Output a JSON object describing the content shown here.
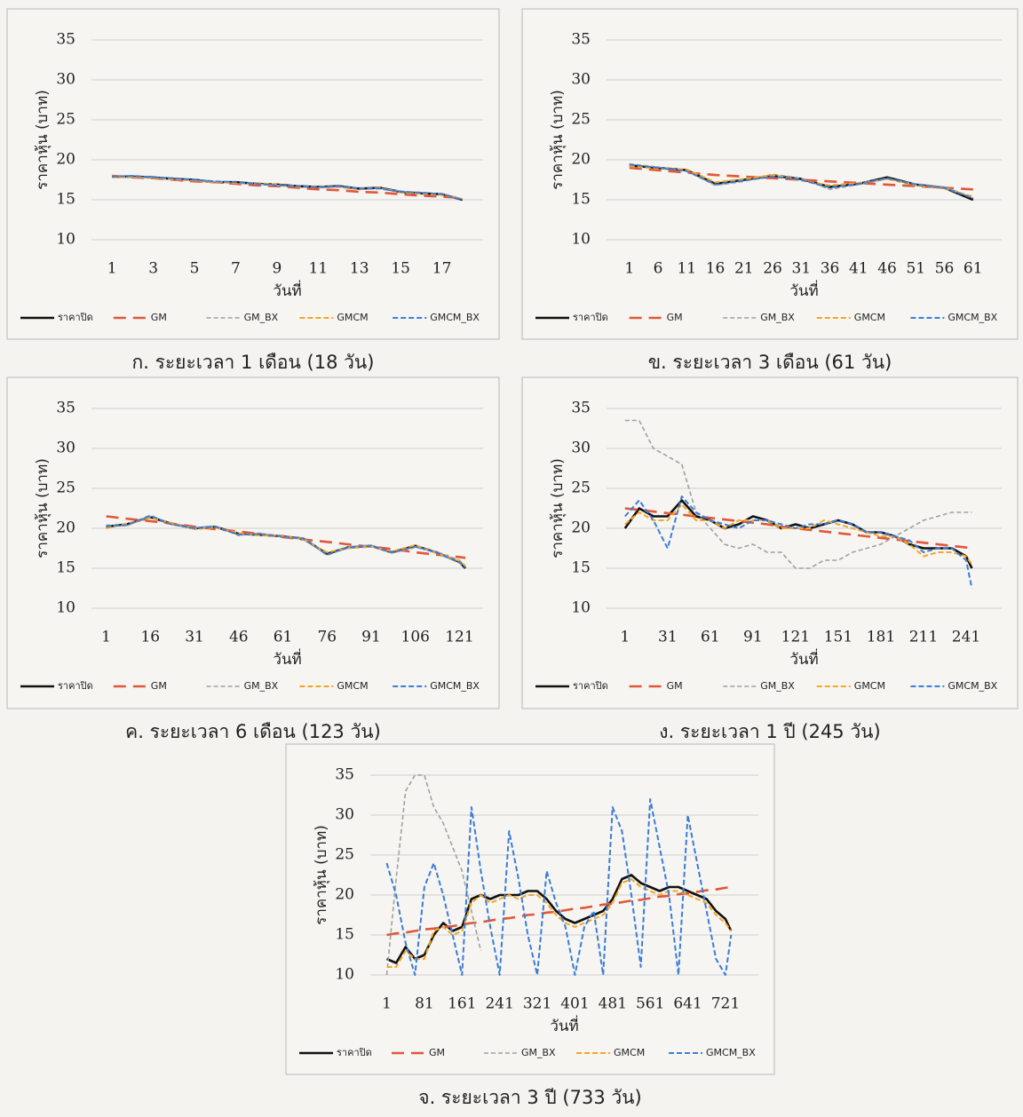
{
  "chart_data": [
    {
      "type": "line",
      "caption": "ก. ระยะเวลา 1 เดือน (18 วัน)",
      "ylabel": "ราคาหุ้น (บาท)",
      "xlabel": "วันที่",
      "x": [
        1,
        2,
        3,
        4,
        5,
        6,
        7,
        8,
        9,
        10,
        11,
        12,
        13,
        14,
        15,
        16,
        17,
        18
      ],
      "xlim": [
        0,
        19
      ],
      "xticks": [
        1,
        3,
        5,
        7,
        9,
        11,
        13,
        15,
        17
      ],
      "ylim": [
        10,
        35
      ],
      "yticks": [
        10,
        15,
        20,
        25,
        30,
        35
      ],
      "grid": true,
      "legend": "bottom",
      "series": [
        {
          "name": "ราคาปิด",
          "color": "#111111",
          "values": [
            17.9,
            17.9,
            17.8,
            17.6,
            17.5,
            17.2,
            17.2,
            17.0,
            16.9,
            16.7,
            16.6,
            16.7,
            16.4,
            16.5,
            16.0,
            15.8,
            15.7,
            15.0
          ]
        },
        {
          "name": "GM",
          "color": "#e0573a",
          "values": [
            18.0,
            17.8,
            17.7,
            17.5,
            17.3,
            17.2,
            17.0,
            16.8,
            16.7,
            16.5,
            16.3,
            16.2,
            16.0,
            15.9,
            15.7,
            15.5,
            15.4,
            15.2
          ]
        },
        {
          "name": "GM_BX",
          "color": "#a0a0a0",
          "values": [
            18.0,
            17.8,
            17.8,
            17.5,
            17.4,
            17.3,
            17.1,
            17.0,
            16.8,
            16.8,
            16.5,
            16.6,
            16.5,
            16.4,
            16.1,
            15.7,
            15.8,
            15.1
          ]
        },
        {
          "name": "GMCM",
          "color": "#f5a623",
          "values": [
            17.8,
            17.9,
            17.7,
            17.6,
            17.4,
            17.2,
            17.1,
            17.1,
            16.9,
            16.6,
            16.7,
            16.6,
            16.3,
            16.5,
            15.9,
            15.8,
            15.6,
            15.1
          ]
        },
        {
          "name": "GMCM_BX",
          "color": "#3b7dd8",
          "values": [
            17.9,
            18.0,
            17.8,
            17.7,
            17.5,
            17.3,
            17.2,
            17.0,
            16.8,
            16.7,
            16.6,
            16.7,
            16.4,
            16.4,
            16.0,
            15.9,
            15.7,
            15.0
          ]
        }
      ]
    },
    {
      "type": "line",
      "caption": "ข. ระยะเวลา 3 เดือน (61 วัน)",
      "ylabel": "ราคาหุ้น (บาท)",
      "xlabel": "วันที่",
      "x": [
        1,
        6,
        11,
        16,
        21,
        26,
        31,
        36,
        41,
        46,
        51,
        56,
        61
      ],
      "xlim": [
        -3,
        66
      ],
      "xticks": [
        1,
        6,
        11,
        16,
        21,
        26,
        31,
        36,
        41,
        46,
        51,
        56,
        61
      ],
      "ylim": [
        10,
        35
      ],
      "yticks": [
        10,
        15,
        20,
        25,
        30,
        35
      ],
      "grid": true,
      "legend": "bottom",
      "series": [
        {
          "name": "ราคาปิด",
          "color": "#111111",
          "values": [
            19.3,
            19.0,
            18.7,
            17.0,
            17.5,
            18.0,
            17.6,
            16.6,
            17.0,
            17.8,
            16.9,
            16.5,
            15.0
          ]
        },
        {
          "name": "GM",
          "color": "#e0573a",
          "values": [
            19.0,
            18.7,
            18.4,
            18.1,
            17.9,
            17.7,
            17.5,
            17.3,
            17.1,
            16.9,
            16.7,
            16.5,
            16.3
          ]
        },
        {
          "name": "GM_BX",
          "color": "#a0a0a0",
          "values": [
            19.5,
            19.1,
            18.6,
            16.8,
            17.3,
            18.2,
            17.7,
            16.3,
            16.9,
            17.6,
            17.0,
            16.6,
            15.3
          ]
        },
        {
          "name": "GMCM",
          "color": "#f5a623",
          "values": [
            19.2,
            18.9,
            18.8,
            17.2,
            17.6,
            18.1,
            17.4,
            16.8,
            17.1,
            17.6,
            16.8,
            16.4,
            15.4
          ]
        },
        {
          "name": "GMCM_BX",
          "color": "#3b7dd8",
          "values": [
            19.4,
            19.0,
            18.6,
            16.9,
            17.4,
            17.9,
            17.5,
            16.5,
            17.0,
            17.7,
            16.9,
            16.5,
            15.2
          ]
        }
      ]
    },
    {
      "type": "line",
      "caption": "ค. ระยะเวลา 6 เดือน (123 วัน)",
      "ylabel": "ราคาหุ้น (บาท)",
      "xlabel": "วันที่",
      "x": [
        1,
        8,
        16,
        23,
        31,
        38,
        46,
        53,
        61,
        68,
        76,
        83,
        91,
        98,
        106,
        113,
        121,
        123
      ],
      "xlim": [
        -4,
        129
      ],
      "xticks": [
        1,
        16,
        31,
        46,
        61,
        76,
        91,
        106,
        121
      ],
      "ylim": [
        10,
        35
      ],
      "yticks": [
        10,
        15,
        20,
        25,
        30,
        35
      ],
      "grid": true,
      "legend": "bottom",
      "series": [
        {
          "name": "ราคาปิด",
          "color": "#111111",
          "values": [
            20.2,
            20.5,
            21.4,
            20.6,
            20.0,
            20.2,
            19.3,
            19.2,
            19.0,
            18.7,
            16.8,
            17.6,
            17.8,
            17.0,
            17.8,
            17.0,
            15.8,
            15.0
          ]
        },
        {
          "name": "GM",
          "color": "#e0573a",
          "values": [
            21.5,
            21.2,
            20.9,
            20.6,
            20.2,
            19.9,
            19.6,
            19.3,
            18.9,
            18.6,
            18.3,
            18.0,
            17.7,
            17.4,
            17.0,
            16.7,
            16.4,
            16.3
          ]
        },
        {
          "name": "GM_BX",
          "color": "#a0a0a0",
          "values": [
            20.4,
            20.3,
            21.5,
            20.5,
            20.1,
            20.3,
            19.1,
            19.4,
            18.9,
            18.8,
            16.6,
            17.7,
            17.9,
            16.9,
            17.6,
            17.1,
            16.0,
            15.2
          ]
        },
        {
          "name": "GMCM",
          "color": "#f5a623",
          "values": [
            20.0,
            20.6,
            21.3,
            20.7,
            19.9,
            20.1,
            19.4,
            19.1,
            19.1,
            18.6,
            17.0,
            17.5,
            17.7,
            17.1,
            17.9,
            16.9,
            15.9,
            15.3
          ]
        },
        {
          "name": "GMCM_BX",
          "color": "#3b7dd8",
          "values": [
            20.3,
            20.4,
            21.6,
            20.5,
            20.0,
            20.2,
            19.2,
            19.3,
            19.0,
            18.7,
            16.7,
            17.6,
            17.8,
            17.0,
            17.7,
            17.0,
            15.7,
            15.1
          ]
        }
      ]
    },
    {
      "type": "line",
      "caption": "ง. ระยะเวลา 1 ปี (245 วัน)",
      "ylabel": "ราคาหุ้น (บาท)",
      "xlabel": "วันที่",
      "x": [
        1,
        11,
        21,
        31,
        41,
        51,
        61,
        71,
        81,
        91,
        101,
        111,
        121,
        131,
        141,
        151,
        161,
        171,
        181,
        191,
        201,
        211,
        221,
        231,
        241,
        245
      ],
      "xlim": [
        -12,
        266
      ],
      "xticks": [
        1,
        31,
        61,
        91,
        121,
        151,
        181,
        211,
        241
      ],
      "ylim": [
        10,
        35
      ],
      "yticks": [
        10,
        15,
        20,
        25,
        30,
        35
      ],
      "grid": true,
      "legend": "bottom",
      "series": [
        {
          "name": "ราคาปิด",
          "color": "#111111",
          "values": [
            20,
            22.5,
            21.5,
            21.5,
            23.5,
            21.5,
            21,
            20,
            20.5,
            21.5,
            21,
            20,
            20.5,
            20,
            20.5,
            21,
            20.5,
            19.5,
            19.5,
            19,
            18,
            17.5,
            17.5,
            17.5,
            16.5,
            15
          ]
        },
        {
          "name": "GM",
          "color": "#e0573a",
          "values": [
            22.5,
            22.3,
            22.1,
            21.9,
            21.7,
            21.5,
            21.3,
            21.1,
            20.9,
            20.7,
            20.5,
            20.2,
            20.0,
            19.8,
            19.6,
            19.4,
            19.2,
            19.0,
            18.8,
            18.6,
            18.4,
            18.2,
            18.0,
            17.8,
            17.6,
            17.5
          ]
        },
        {
          "name": "GM_BX",
          "color": "#a0a0a0",
          "values": [
            33.5,
            33.5,
            30,
            29,
            28,
            22,
            20,
            18,
            17.5,
            18,
            17,
            17,
            15,
            15,
            16,
            16,
            17,
            17.5,
            18,
            19,
            20,
            21,
            21.5,
            22,
            22,
            22
          ]
        },
        {
          "name": "GMCM",
          "color": "#f5a623",
          "values": [
            20.5,
            22,
            21,
            21,
            23,
            21,
            21,
            20,
            21,
            21,
            21,
            20,
            20,
            20,
            21,
            20.5,
            20,
            19.5,
            19,
            19,
            18,
            16.5,
            17,
            17,
            16.5,
            15.5
          ]
        },
        {
          "name": "GMCM_BX",
          "color": "#3b7dd8",
          "values": [
            21.5,
            23.5,
            21,
            17.5,
            24,
            22,
            21,
            20.5,
            20,
            21,
            21,
            20.5,
            20,
            20.5,
            20.5,
            21,
            20.5,
            19.5,
            19.5,
            19,
            18.5,
            17,
            17.5,
            17.5,
            16,
            12.5
          ]
        }
      ]
    },
    {
      "type": "line",
      "caption": "จ. ระยะเวลา 3 ปี (733 วัน)",
      "ylabel": "ราคาหุ้น (บาท)",
      "xlabel": "วันที่",
      "x": [
        1,
        21,
        41,
        61,
        81,
        101,
        121,
        141,
        161,
        181,
        201,
        221,
        241,
        261,
        281,
        301,
        321,
        341,
        361,
        381,
        401,
        421,
        441,
        461,
        481,
        501,
        521,
        541,
        561,
        581,
        601,
        621,
        641,
        661,
        681,
        701,
        721,
        733
      ],
      "xlim": [
        -34,
        791
      ],
      "xticks": [
        1,
        81,
        161,
        241,
        321,
        401,
        481,
        561,
        641,
        721
      ],
      "ylim": [
        10,
        35
      ],
      "yticks": [
        10,
        15,
        20,
        25,
        30,
        35
      ],
      "grid": true,
      "legend": "bottom",
      "series": [
        {
          "name": "ราคาปิด",
          "color": "#111111",
          "values": [
            12,
            11.5,
            13.5,
            12,
            12.5,
            15,
            16.5,
            15.5,
            16,
            19.5,
            20,
            19.5,
            20,
            20,
            20,
            20.5,
            20.5,
            19.5,
            18,
            17,
            16.5,
            17,
            17.5,
            18,
            19.5,
            22,
            22.5,
            21.5,
            21,
            20.5,
            21,
            21,
            20.5,
            20,
            19.5,
            18,
            17,
            15.5
          ]
        },
        {
          "name": "GM",
          "color": "#e0573a",
          "values": [
            15.0,
            15.2,
            15.3,
            15.5,
            15.7,
            15.8,
            16.0,
            16.1,
            16.3,
            16.5,
            16.6,
            16.8,
            17.0,
            17.1,
            17.3,
            17.5,
            17.6,
            17.8,
            17.9,
            18.1,
            18.3,
            18.4,
            18.6,
            18.8,
            18.9,
            19.1,
            19.3,
            19.4,
            19.6,
            19.8,
            19.9,
            20.1,
            20.2,
            20.4,
            20.6,
            20.7,
            20.9,
            21.0
          ]
        },
        {
          "name": "GM_BX",
          "color": "#a0a0a0",
          "values": [
            10,
            22,
            33,
            35,
            35,
            31,
            29,
            26,
            23,
            18,
            13,
            null,
            null,
            null,
            null,
            null,
            null,
            null,
            null,
            null,
            null,
            null,
            null,
            null,
            null,
            null,
            null,
            null,
            null,
            null,
            null,
            null,
            null,
            null,
            null,
            null,
            null,
            null
          ]
        },
        {
          "name": "GMCM",
          "color": "#f5a623",
          "values": [
            11,
            11,
            13,
            12,
            12,
            15.5,
            16,
            15,
            15.5,
            19,
            20,
            19,
            19.5,
            20,
            19.5,
            20,
            20,
            19,
            17.5,
            16.5,
            16,
            16.5,
            17,
            17.5,
            19,
            21.5,
            22,
            21,
            20.5,
            20,
            20.5,
            20.5,
            20,
            19.5,
            19,
            17.5,
            16.5,
            15.5
          ]
        },
        {
          "name": "GMCM_BX",
          "color": "#3b7dd8",
          "values": [
            24,
            20,
            14,
            10,
            21,
            24,
            20,
            15,
            10,
            31,
            23,
            16,
            10,
            28,
            22,
            15,
            10,
            23,
            19,
            16,
            10,
            16,
            18,
            10,
            31,
            28,
            20,
            11,
            32,
            26,
            20,
            10,
            30,
            24,
            18,
            12,
            10,
            15
          ]
        }
      ]
    }
  ]
}
